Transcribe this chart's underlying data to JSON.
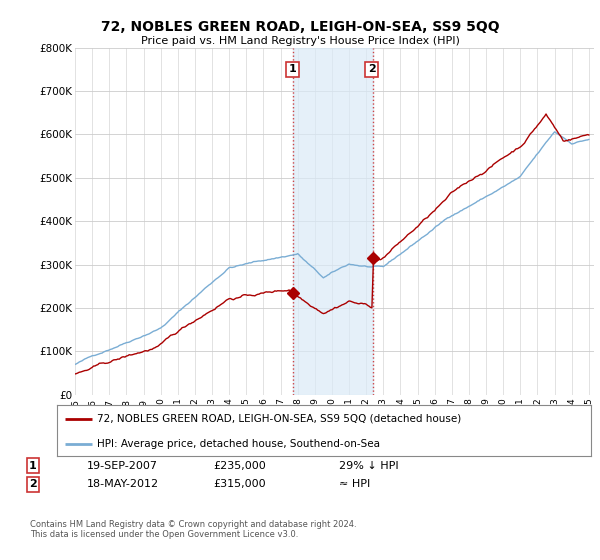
{
  "title": "72, NOBLES GREEN ROAD, LEIGH-ON-SEA, SS9 5QQ",
  "subtitle": "Price paid vs. HM Land Registry's House Price Index (HPI)",
  "ylim": [
    0,
    800000
  ],
  "yticks": [
    0,
    100000,
    200000,
    300000,
    400000,
    500000,
    600000,
    700000,
    800000
  ],
  "ytick_labels": [
    "£0",
    "£100K",
    "£200K",
    "£300K",
    "£400K",
    "£500K",
    "£600K",
    "£700K",
    "£800K"
  ],
  "sale1_date": 2007.73,
  "sale1_price": 235000,
  "sale2_date": 2012.37,
  "sale2_price": 315000,
  "shade_color": "#daeaf7",
  "shade_alpha": 0.7,
  "red_color": "#aa0000",
  "blue_color": "#7aadd4",
  "vline_color": "#cc3333",
  "legend_line1": "72, NOBLES GREEN ROAD, LEIGH-ON-SEA, SS9 5QQ (detached house)",
  "legend_line2": "HPI: Average price, detached house, Southend-on-Sea",
  "footer": "Contains HM Land Registry data © Crown copyright and database right 2024.\nThis data is licensed under the Open Government Licence v3.0.",
  "background_color": "#ffffff",
  "grid_color": "#cccccc"
}
